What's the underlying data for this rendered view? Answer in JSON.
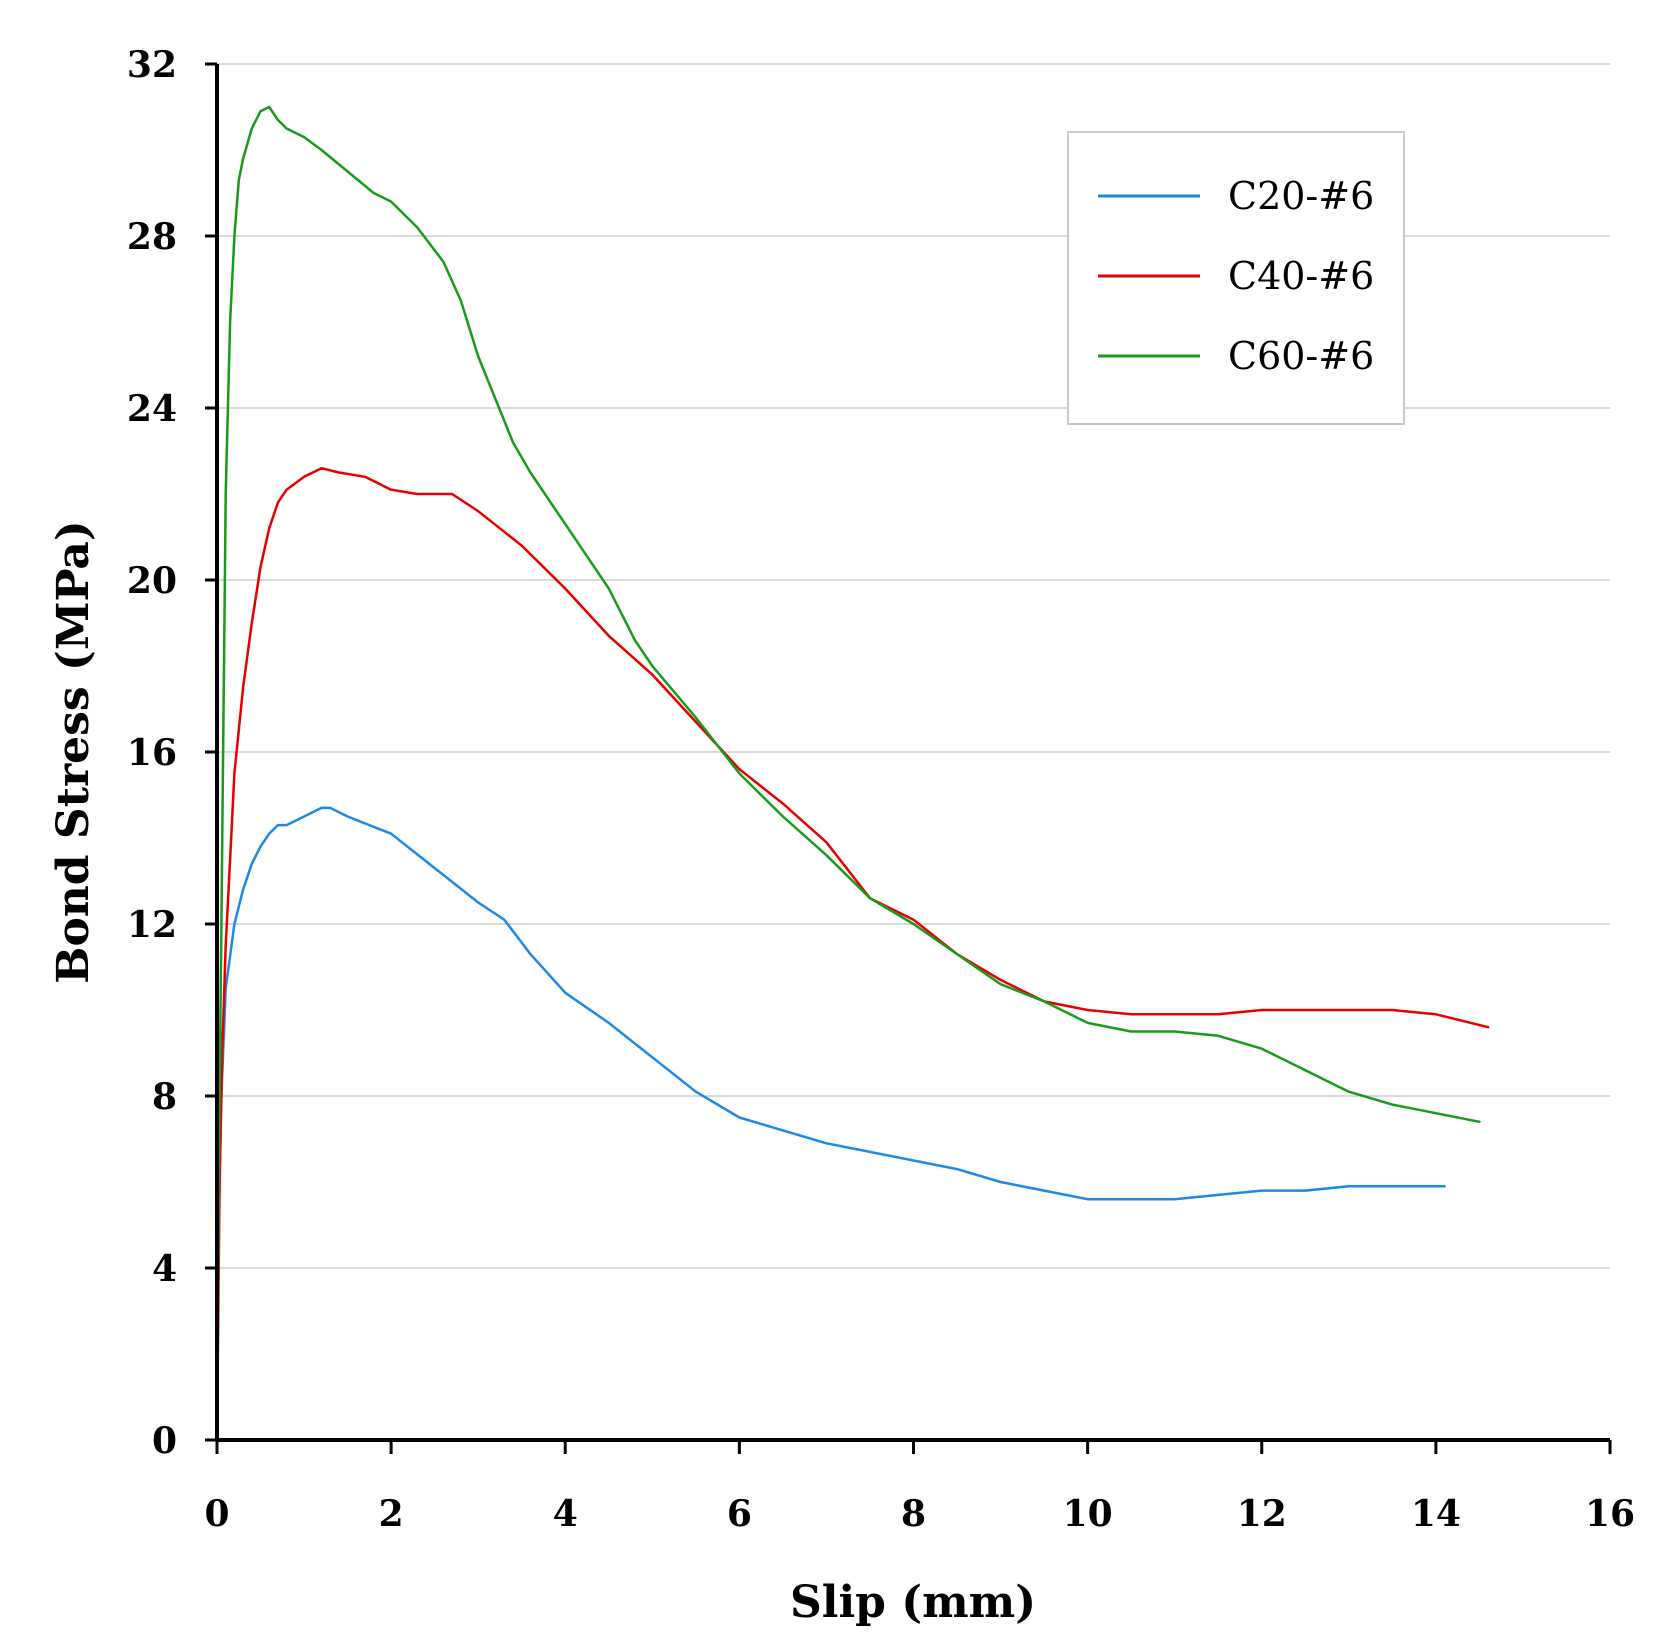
{
  "chart_data": {
    "type": "line",
    "title": "",
    "xlabel": "Slip (mm)",
    "ylabel": "Bond Stress (MPa)",
    "xlim": [
      0,
      16
    ],
    "ylim": [
      0,
      32
    ],
    "xticks": [
      0,
      2,
      4,
      6,
      8,
      10,
      12,
      14,
      16
    ],
    "yticks": [
      0,
      4,
      8,
      12,
      16,
      20,
      24,
      28,
      32
    ],
    "grid": "horizontal",
    "legend_position": "top-right",
    "series": [
      {
        "name": "C20-#6",
        "color": "#1e88e5",
        "x": [
          0,
          0.02,
          0.05,
          0.1,
          0.2,
          0.3,
          0.4,
          0.5,
          0.6,
          0.7,
          0.8,
          1.0,
          1.2,
          1.3,
          1.5,
          2.0,
          2.5,
          3.0,
          3.3,
          3.6,
          4.0,
          4.5,
          5.0,
          5.5,
          6.0,
          6.5,
          7.0,
          7.5,
          8.0,
          8.5,
          9.0,
          9.5,
          10.0,
          10.5,
          11.0,
          11.5,
          12.0,
          12.5,
          13.0,
          13.5,
          14.1
        ],
        "y": [
          0,
          5,
          8,
          10.5,
          12,
          12.8,
          13.4,
          13.8,
          14.1,
          14.3,
          14.3,
          14.5,
          14.7,
          14.7,
          14.5,
          14.1,
          13.3,
          12.5,
          12.1,
          11.3,
          10.4,
          9.7,
          8.9,
          8.1,
          7.5,
          7.2,
          6.9,
          6.7,
          6.5,
          6.3,
          6.0,
          5.8,
          5.6,
          5.6,
          5.6,
          5.7,
          5.8,
          5.8,
          5.9,
          5.9,
          5.9
        ]
      },
      {
        "name": "C40-#6",
        "color": "#e60000",
        "x": [
          0,
          0.03,
          0.06,
          0.1,
          0.15,
          0.2,
          0.3,
          0.4,
          0.5,
          0.6,
          0.7,
          0.8,
          1.0,
          1.2,
          1.4,
          1.7,
          2.0,
          2.3,
          2.7,
          3.0,
          3.5,
          4.0,
          4.5,
          5.0,
          5.5,
          6.0,
          6.5,
          7.0,
          7.5,
          8.0,
          8.5,
          9.0,
          9.5,
          10.0,
          10.5,
          11.0,
          11.5,
          12.0,
          12.5,
          13.0,
          13.5,
          14.0,
          14.6
        ],
        "y": [
          0,
          6,
          9,
          11.5,
          13.5,
          15.5,
          17.5,
          19,
          20.3,
          21.2,
          21.8,
          22.1,
          22.4,
          22.6,
          22.5,
          22.4,
          22.1,
          22.0,
          22.0,
          21.6,
          20.8,
          19.8,
          18.7,
          17.8,
          16.7,
          15.6,
          14.8,
          13.9,
          12.6,
          12.1,
          11.3,
          10.7,
          10.2,
          10.0,
          9.9,
          9.9,
          9.9,
          10.0,
          10.0,
          10.0,
          10.0,
          9.9,
          9.6
        ]
      },
      {
        "name": "C60-#6",
        "color": "#1a9a1a",
        "x": [
          0,
          0.02,
          0.05,
          0.08,
          0.1,
          0.15,
          0.2,
          0.25,
          0.3,
          0.4,
          0.5,
          0.6,
          0.7,
          0.8,
          1.0,
          1.2,
          1.5,
          1.8,
          2.0,
          2.3,
          2.6,
          2.8,
          3.0,
          3.2,
          3.4,
          3.6,
          3.8,
          4.0,
          4.2,
          4.5,
          4.8,
          5.0,
          5.5,
          6.0,
          6.5,
          7.0,
          7.5,
          8.0,
          8.5,
          9.0,
          9.5,
          10.0,
          10.5,
          11.0,
          11.5,
          12.0,
          12.5,
          13.0,
          13.5,
          14.0,
          14.5
        ],
        "y": [
          0,
          6,
          12,
          18,
          22,
          26,
          28,
          29.3,
          29.8,
          30.5,
          30.9,
          31.0,
          30.7,
          30.5,
          30.3,
          30.0,
          29.5,
          29.0,
          28.8,
          28.2,
          27.4,
          26.5,
          25.2,
          24.2,
          23.2,
          22.5,
          21.9,
          21.3,
          20.7,
          19.8,
          18.6,
          18.0,
          16.8,
          15.5,
          14.5,
          13.6,
          12.6,
          12.0,
          11.3,
          10.6,
          10.2,
          9.7,
          9.5,
          9.5,
          9.4,
          9.1,
          8.6,
          8.1,
          7.8,
          7.6,
          7.4
        ]
      }
    ]
  }
}
